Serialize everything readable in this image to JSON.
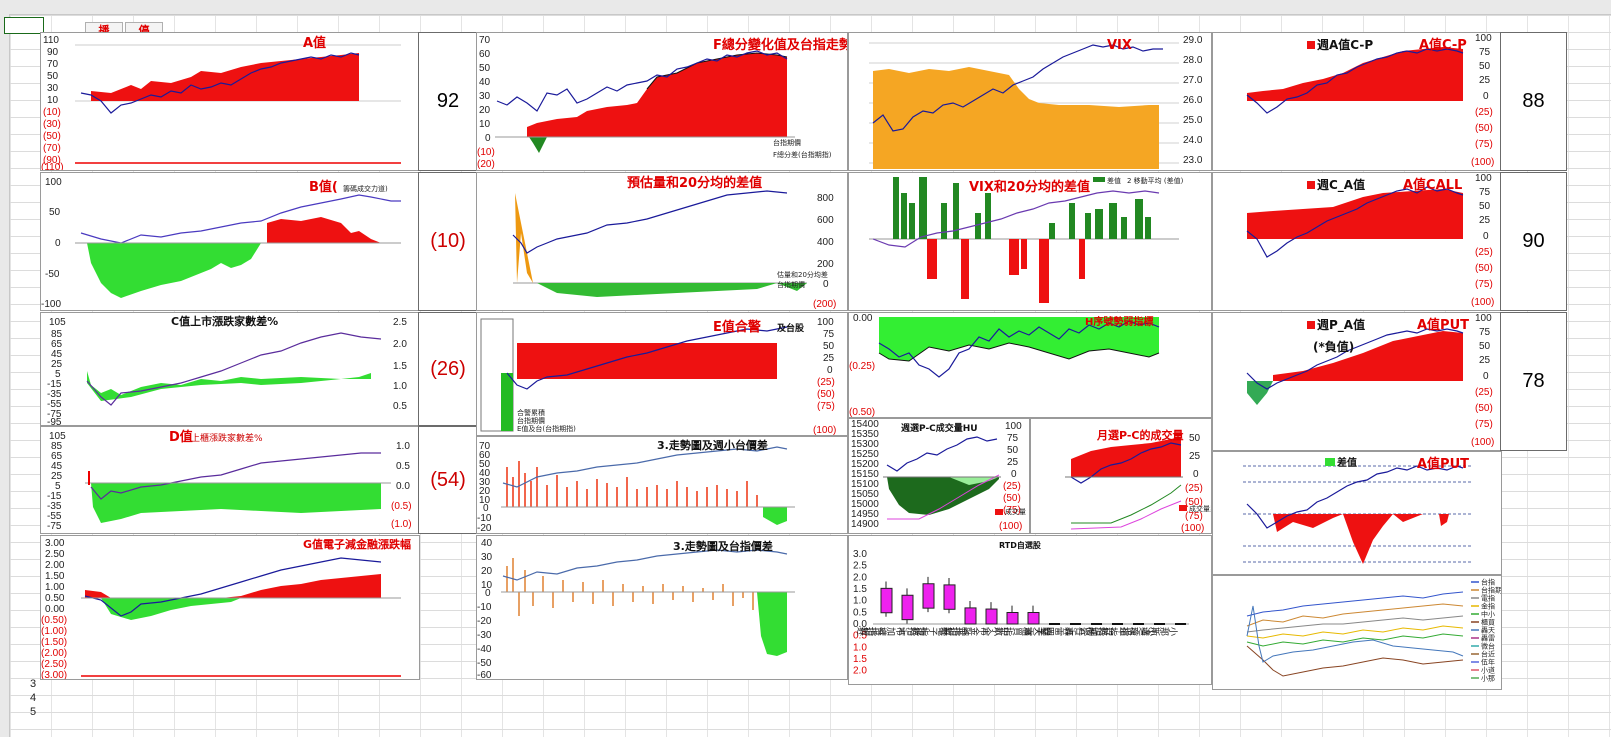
{
  "toolbar": {
    "broadcast_label": "播",
    "stop_label": "停"
  },
  "numbers": [
    "92",
    "(10)",
    "(26)",
    "(54)",
    "88",
    "90",
    "78"
  ],
  "panels": {
    "a": {
      "title": "A值",
      "axis": [
        "110",
        "90",
        "70",
        "50",
        "30",
        "10",
        "(10)",
        "(30)",
        "(50)",
        "(70)",
        "(90)",
        "(110)"
      ]
    },
    "b": {
      "title": "B值(",
      "sub": "籌碼成交力道)",
      "axis": [
        "100",
        "50",
        "0",
        "-50",
        "-100"
      ]
    },
    "c": {
      "title": "C值上市漲跌家數差%",
      "axis": [
        "105",
        "85",
        "65",
        "45",
        "25",
        "5",
        "-15",
        "-35",
        "-55",
        "-75",
        "-95",
        "-115"
      ],
      "raxis": [
        "2.5",
        "2.0",
        "1.5",
        "1.0",
        "0.5",
        "0.0"
      ]
    },
    "d": {
      "title": "D值",
      "sub": "上櫃漲跌家數差%",
      "axis": [
        "105",
        "85",
        "65",
        "45",
        "25",
        "5",
        "-15",
        "-35",
        "-55",
        "-75",
        "-95"
      ],
      "raxis": [
        "1.0",
        "0.5",
        "0.0",
        "(0.5)",
        "(1.0)"
      ]
    },
    "g": {
      "title": "G值電子減金融漲跌幅",
      "axis": [
        "3.00",
        "2.50",
        "2.00",
        "1.50",
        "1.00",
        "0.50",
        "0.00",
        "(0.50)",
        "(1.00)",
        "(1.50)",
        "(2.00)",
        "(2.50)",
        "(3.00)"
      ]
    },
    "f": {
      "title": "F總分變化值及台指走勢",
      "axis": [
        "70",
        "60",
        "50",
        "40",
        "30",
        "20",
        "10",
        "0",
        "(10)",
        "(20)"
      ],
      "legend": [
        "台指期價",
        "F總分差(台指期指)"
      ]
    },
    "est": {
      "title": "預估量和20分均的差值",
      "raxis": [
        "800",
        "600",
        "400",
        "200",
        "0",
        "(200)"
      ],
      "legend": [
        "估量和20分均差",
        "台指期價"
      ]
    },
    "e": {
      "title": "E值合警",
      "sub": "及台股",
      "raxis": [
        "100",
        "75",
        "50",
        "25",
        "0",
        "(25)",
        "(50)",
        "(75)",
        "(100)"
      ],
      "legend": [
        "合警累積",
        "台指期價",
        "E值及台(台指期指)"
      ]
    },
    "trend1": {
      "title": "3.走勢圖及週小台價差",
      "axis": [
        "70",
        "60",
        "50",
        "40",
        "30",
        "20",
        "10",
        "0",
        "-10",
        "-20",
        "-30"
      ]
    },
    "trend2": {
      "title": "3.走勢圖及台指價差",
      "axis": [
        "40",
        "30",
        "20",
        "10",
        "0",
        "-10",
        "-20",
        "-30",
        "-40",
        "-50",
        "-60"
      ]
    },
    "vix": {
      "title": "VIX",
      "raxis": [
        "29.0",
        "28.0",
        "27.0",
        "26.0",
        "25.0",
        "24.0",
        "23.0"
      ]
    },
    "vix20": {
      "title": "VIX和20分均的差值",
      "legend": [
        "差值",
        "2 移動平均 (差值)"
      ]
    },
    "h": {
      "title": "H序號勢弱指標",
      "axis": [
        "0.00",
        "(0.25)",
        "(0.50)"
      ]
    },
    "weekpc": {
      "title": "週選P-C成交量HU",
      "axis": [
        "15400",
        "15350",
        "15300",
        "15250",
        "15200",
        "15150",
        "15100",
        "15050",
        "15000",
        "14950",
        "14900"
      ],
      "raxis": [
        "100",
        "75",
        "50",
        "25",
        "0",
        "(25)",
        "(50)",
        "(75)",
        "(100)"
      ],
      "legend": [
        "成交量"
      ]
    },
    "monthpc": {
      "title": "月選P-C的成交量",
      "raxis": [
        "50",
        "25",
        "0",
        "(25)",
        "(50)",
        "(75)",
        "(100)"
      ],
      "legend": [
        "成交量累計"
      ]
    },
    "rtd": {
      "title": "RTD自選股",
      "axis": [
        "3.0",
        "2.5",
        "2.0",
        "1.5",
        "1.0",
        "0.5",
        "0.0",
        "0.5",
        "1.0",
        "1.5",
        "2.0"
      ],
      "categories": [
        "台指近",
        "市加權指數",
        "電指近",
        "電子指數",
        "金指近",
        "市金融指數",
        "中小企",
        "櫃買指數",
        "轟天雷",
        "轟雷四季",
        "微台近",
        "台指期近",
        "伍年指數近",
        "小道瓊指",
        "小那斯達"
      ],
      "values": [
        1.55,
        1.25,
        1.75,
        1.7,
        0.7,
        0.65,
        0.5,
        0.5,
        0.0,
        0.0,
        0.0,
        0.0,
        0.0,
        0.0,
        0.0
      ]
    },
    "wa": {
      "title": "週A值C-P",
      "title2": "A值C-P",
      "raxis": [
        "100",
        "75",
        "50",
        "25",
        "0",
        "(25)",
        "(50)",
        "(75)",
        "(100)"
      ]
    },
    "wc": {
      "title": "週C_A值",
      "title2": "A值CALL",
      "raxis": [
        "100",
        "75",
        "50",
        "25",
        "0",
        "(25)",
        "(50)",
        "(75)",
        "(100)"
      ]
    },
    "wp": {
      "title": "週P_A值",
      "sub": "(*負值)",
      "title2": "A值PUT",
      "raxis": [
        "100",
        "75",
        "50",
        "25",
        "0",
        "(25)",
        "(50)",
        "(75)",
        "(100)"
      ]
    },
    "diffput": {
      "title": "A值PUT",
      "legend": "差值"
    },
    "multi": {
      "legend": [
        "台指",
        "台指期",
        "電指",
        "金指",
        "中小",
        "櫃買",
        "轟天",
        "轟雷",
        "微台",
        "台近",
        "伍年",
        "小道",
        "小那"
      ]
    }
  },
  "chart_data": [
    {
      "type": "bar",
      "title": "RTD自選股",
      "categories": [
        "台指近",
        "市加權指數",
        "電指近",
        "電子指數",
        "金指近",
        "市金融指數",
        "中小企",
        "櫃買指數",
        "轟天雷",
        "轟雷四季",
        "微台近",
        "台指期近",
        "伍年指數近",
        "小道瓊指",
        "小那斯達"
      ],
      "values": [
        1.55,
        1.25,
        1.75,
        1.7,
        0.7,
        0.65,
        0.5,
        0.5,
        0,
        0,
        0,
        0,
        0,
        0,
        0
      ],
      "ylim": [
        -2.0,
        3.0
      ]
    }
  ]
}
